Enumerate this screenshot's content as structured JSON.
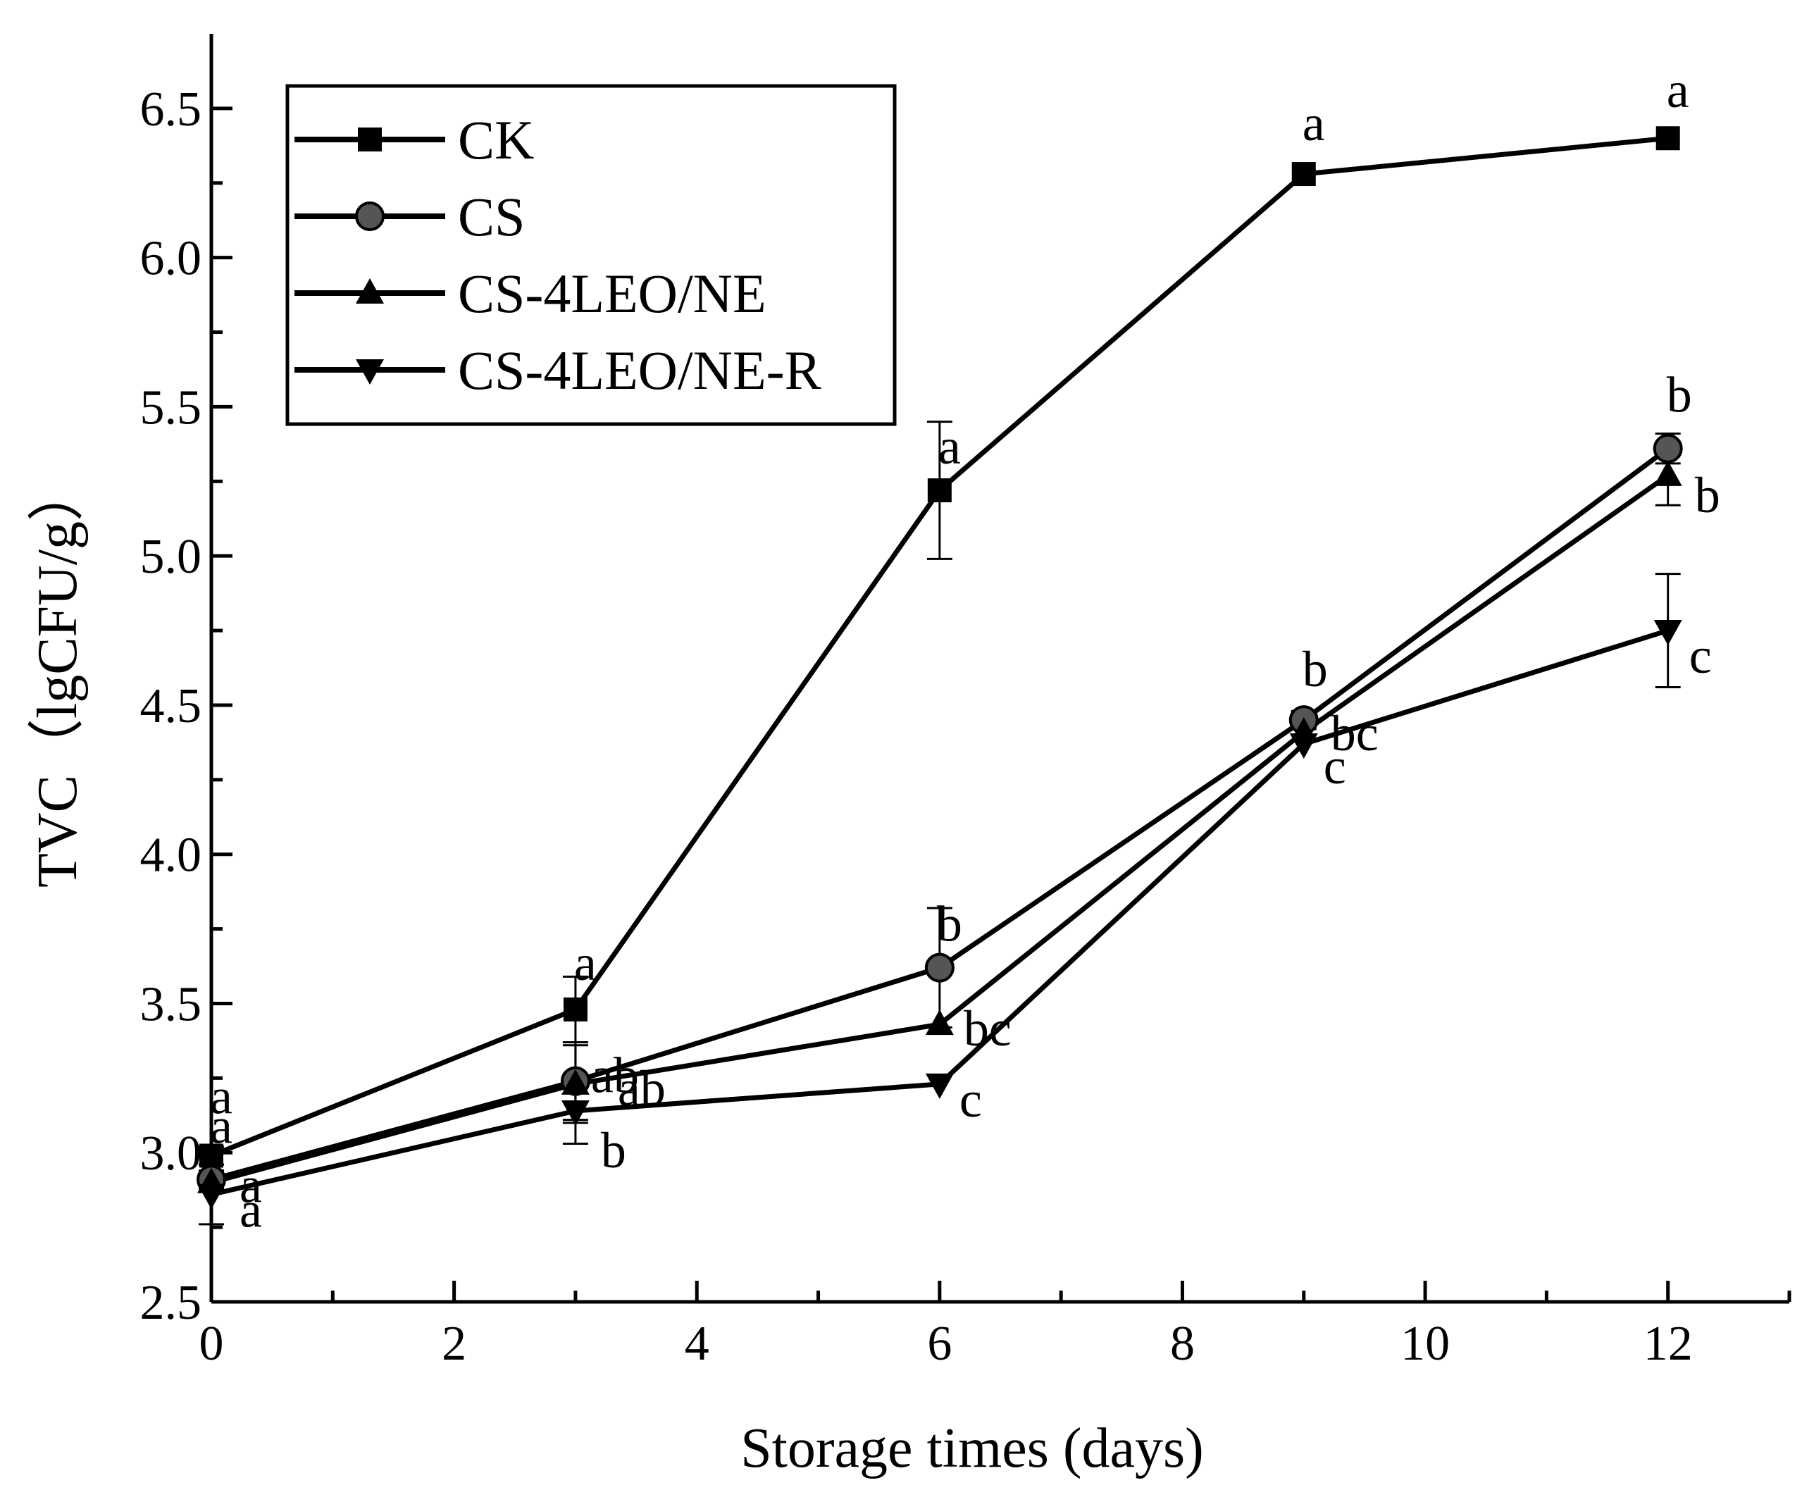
{
  "chart_data": {
    "type": "line",
    "title": "",
    "xlabel": "Storage times (days)",
    "ylabel": "TVC（lgCFU/g）",
    "xlim": [
      0,
      13
    ],
    "ylim": [
      2.5,
      6.75
    ],
    "xticks": [
      0,
      2,
      4,
      6,
      8,
      10,
      12
    ],
    "yticks": [
      2.5,
      3.0,
      3.5,
      4.0,
      4.5,
      5.0,
      5.5,
      6.0,
      6.5
    ],
    "xtick_labels": [
      "0",
      "2",
      "4",
      "6",
      "8",
      "10",
      "12"
    ],
    "ytick_labels": [
      "2.5",
      "3.0",
      "3.5",
      "4.0",
      "4.5",
      "5.0",
      "5.5",
      "6.0",
      "6.5"
    ],
    "x": [
      0,
      3,
      6,
      9,
      12
    ],
    "legend_position": "top-left",
    "series": [
      {
        "name": "CK",
        "marker": "square",
        "values": [
          2.99,
          3.48,
          5.22,
          6.28,
          6.4
        ],
        "errors": [
          0.03,
          0.11,
          0.23,
          0.0,
          0.0
        ],
        "letters": [
          "a",
          "a",
          "a",
          "a",
          "a"
        ]
      },
      {
        "name": "CS",
        "marker": "circle",
        "values": [
          2.91,
          3.24,
          3.62,
          4.45,
          5.36
        ],
        "errors": [
          0.03,
          0.13,
          0.2,
          0.03,
          0.05
        ],
        "letters": [
          "a",
          "ab",
          "b",
          "b",
          "b"
        ]
      },
      {
        "name": "CS-4LEO/NE",
        "marker": "triangle-up",
        "values": [
          2.9,
          3.23,
          3.43,
          4.41,
          5.27
        ],
        "errors": [
          0.03,
          0.13,
          0.0,
          0.0,
          0.1
        ],
        "letters": [
          "a",
          "ab",
          "bc",
          "bc",
          "b"
        ]
      },
      {
        "name": "CS-4LEO/NE-R",
        "marker": "triangle-down",
        "values": [
          2.86,
          3.14,
          3.23,
          4.37,
          4.75
        ],
        "errors": [
          0.1,
          0.11,
          0.0,
          0.0,
          0.19
        ],
        "letters": [
          "a",
          "b",
          "c",
          "c",
          "c"
        ]
      }
    ]
  }
}
